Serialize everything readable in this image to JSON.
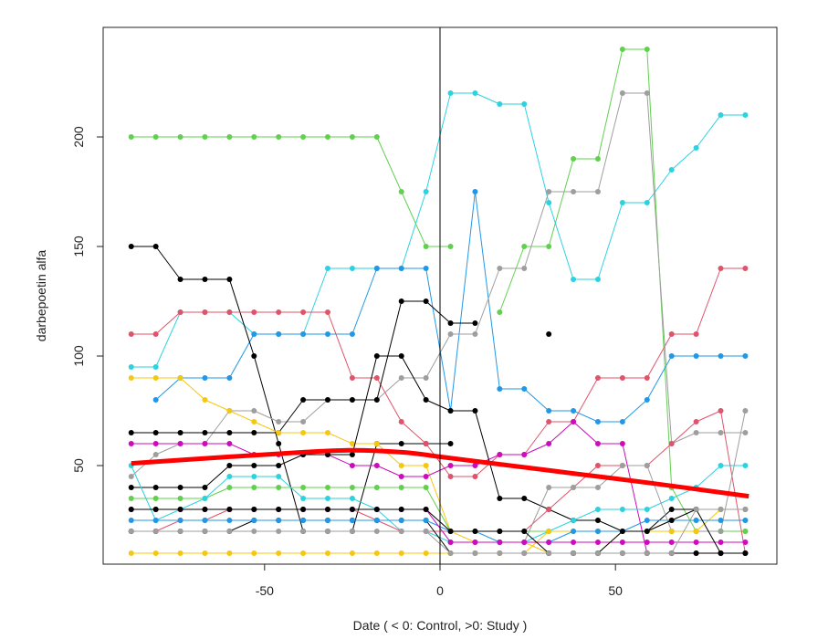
{
  "chart_data": {
    "type": "line",
    "xlabel": "Date ( < 0: Control, >0: Study )",
    "ylabel": "darbepoetin alfa",
    "xlim": [
      -96,
      96
    ],
    "ylim": [
      5,
      250
    ],
    "xticks": [
      -50,
      0,
      50
    ],
    "yticks": [
      50,
      100,
      150,
      200
    ],
    "vline_x": 0,
    "grid": false,
    "legend": "none",
    "series": [
      {
        "color": "#61D04F",
        "x": [
          -88,
          -81,
          -74,
          -67,
          -60,
          -53,
          -46,
          -39,
          -32,
          -25,
          -18,
          -11,
          -4,
          3,
          10,
          17,
          24,
          31,
          38,
          45,
          52,
          59,
          66,
          73,
          80,
          87
        ],
        "y": [
          200,
          200,
          200,
          200,
          200,
          200,
          200,
          200,
          200,
          200,
          200,
          175,
          150,
          150,
          null,
          120,
          150,
          150,
          190,
          190,
          240,
          240,
          40,
          20,
          20,
          20
        ]
      },
      {
        "color": "#2DD2DF",
        "x": [
          -88,
          -81,
          -74,
          -67,
          -60,
          -53,
          -46,
          -39,
          -32,
          -25,
          -18,
          -11,
          -4,
          3,
          10,
          17,
          24,
          31,
          38,
          45,
          52,
          59,
          66,
          73,
          80,
          87
        ],
        "y": [
          95,
          95,
          120,
          120,
          120,
          110,
          110,
          110,
          140,
          140,
          140,
          140,
          175,
          220,
          220,
          215,
          215,
          170,
          135,
          135,
          170,
          170,
          185,
          195,
          210,
          210
        ]
      },
      {
        "color": "#2297E6",
        "x": [
          -81,
          -74,
          -67,
          -60,
          -53,
          -46,
          -39,
          -32,
          -25,
          -18,
          -11,
          -4,
          3,
          10,
          17,
          24,
          31,
          38,
          45,
          52,
          59,
          66,
          73,
          80,
          87
        ],
        "y": [
          80,
          90,
          90,
          90,
          110,
          110,
          110,
          110,
          110,
          140,
          140,
          140,
          75,
          175,
          85,
          85,
          75,
          75,
          70,
          70,
          80,
          100,
          100,
          100,
          100
        ]
      },
      {
        "color": "#000000",
        "x": [
          -88,
          -81,
          -74,
          -67,
          -60,
          -53,
          -46,
          -39,
          -32,
          -25,
          -18,
          -11,
          -4,
          3,
          10,
          17,
          24,
          31
        ],
        "y": [
          150,
          150,
          135,
          135,
          135,
          100,
          60,
          20,
          20,
          20,
          60,
          60,
          60,
          60,
          null,
          null,
          null,
          null
        ]
      },
      {
        "color": "#DF536B",
        "x": [
          -88,
          -81,
          -74,
          -67,
          -60,
          -53,
          -46,
          -39,
          -32,
          -25,
          -18,
          -11,
          -4,
          3,
          10,
          17,
          24,
          31,
          38,
          45,
          52,
          59,
          66,
          73,
          80,
          87
        ],
        "y": [
          110,
          110,
          120,
          120,
          120,
          120,
          120,
          120,
          120,
          90,
          90,
          70,
          60,
          45,
          45,
          55,
          55,
          70,
          70,
          90,
          90,
          90,
          110,
          110,
          140,
          140
        ]
      },
      {
        "color": "#9E9E9E",
        "x": [
          -88,
          -81,
          -74,
          -67,
          -60,
          -53,
          -46,
          -39,
          -32,
          -25,
          -18,
          -11,
          -4,
          3,
          10,
          17,
          24,
          31,
          38,
          45,
          52,
          59,
          66,
          73,
          80,
          87
        ],
        "y": [
          45,
          55,
          60,
          60,
          75,
          75,
          70,
          70,
          80,
          80,
          80,
          90,
          90,
          110,
          110,
          140,
          140,
          175,
          175,
          175,
          220,
          220,
          60,
          65,
          65,
          65
        ]
      },
      {
        "color": "#000000",
        "x": [
          -88,
          -81,
          -74,
          -67,
          -60,
          -53,
          -46,
          -39,
          -32,
          -25,
          -18,
          -11,
          -4,
          3,
          10,
          17,
          24,
          31
        ],
        "y": [
          65,
          65,
          65,
          65,
          65,
          65,
          65,
          80,
          80,
          80,
          80,
          125,
          125,
          115,
          115,
          null,
          null,
          110
        ]
      },
      {
        "color": "#F5C710",
        "x": [
          -88,
          -81,
          -74,
          -67,
          -60,
          -53,
          -46,
          -39,
          -32,
          -25,
          -18,
          -11,
          -4,
          3,
          10,
          17,
          24,
          31,
          38,
          45,
          52,
          59,
          66,
          73,
          80,
          87
        ],
        "y": [
          90,
          90,
          90,
          80,
          75,
          70,
          65,
          65,
          65,
          60,
          60,
          50,
          50,
          20,
          15,
          15,
          15,
          10,
          10,
          10,
          20,
          20,
          25,
          25,
          25,
          25
        ]
      },
      {
        "color": "#CD0BBC",
        "x": [
          -88,
          -81,
          -74,
          -67,
          -60,
          -53,
          -46,
          -39,
          -32,
          -25,
          -18,
          -11,
          -4,
          3,
          10,
          17,
          24,
          31,
          38,
          45,
          52,
          59,
          66,
          73,
          80,
          87
        ],
        "y": [
          60,
          60,
          60,
          60,
          60,
          55,
          55,
          55,
          55,
          50,
          50,
          45,
          45,
          50,
          50,
          55,
          55,
          60,
          70,
          60,
          60,
          10,
          10,
          10,
          10,
          10
        ]
      },
      {
        "color": "#000000",
        "x": [
          -88,
          -81,
          -74,
          -67,
          -60,
          -53,
          -46,
          -39,
          -32,
          -25,
          -18,
          -11,
          -4,
          3,
          10,
          17,
          24,
          31,
          38,
          45,
          52,
          59,
          66,
          73,
          80,
          87
        ],
        "y": [
          40,
          40,
          40,
          40,
          50,
          50,
          50,
          55,
          55,
          55,
          100,
          100,
          80,
          75,
          75,
          35,
          35,
          30,
          25,
          25,
          20,
          20,
          30,
          30,
          30,
          30
        ]
      },
      {
        "color": "#61D04F",
        "x": [
          -88,
          -81,
          -74,
          -67,
          -60,
          -53,
          -46,
          -39,
          -32,
          -25,
          -18,
          -11,
          -4,
          3,
          10,
          17,
          24,
          31,
          38,
          45,
          52,
          59,
          66,
          73,
          80,
          87
        ],
        "y": [
          35,
          35,
          35,
          35,
          40,
          40,
          40,
          40,
          40,
          40,
          40,
          40,
          40,
          20,
          20,
          20,
          20,
          20,
          20,
          20,
          20,
          20,
          20,
          20,
          20,
          20
        ]
      },
      {
        "color": "#2DD2DF",
        "x": [
          -88,
          -81,
          -74,
          -67,
          -60,
          -53,
          -46,
          -39,
          -32,
          -25,
          -18,
          -11,
          -4,
          3,
          10,
          17,
          24,
          31,
          38,
          45,
          52,
          59,
          66,
          73,
          80,
          87
        ],
        "y": [
          50,
          25,
          30,
          35,
          45,
          45,
          45,
          35,
          35,
          35,
          30,
          20,
          20,
          15,
          15,
          15,
          15,
          20,
          25,
          30,
          30,
          30,
          35,
          40,
          50,
          50
        ]
      },
      {
        "color": "#DF536B",
        "x": [
          -88,
          -81,
          -74,
          -67,
          -60,
          -53,
          -46,
          -39,
          -32,
          -25,
          -18,
          -11,
          -4,
          3,
          10,
          17,
          24,
          31,
          38,
          45,
          52,
          59,
          66,
          73,
          80,
          87
        ],
        "y": [
          20,
          20,
          25,
          25,
          30,
          30,
          30,
          30,
          30,
          30,
          25,
          20,
          20,
          20,
          20,
          20,
          20,
          30,
          40,
          50,
          50,
          50,
          60,
          70,
          75,
          10
        ]
      },
      {
        "color": "#9E9E9E",
        "x": [
          -88,
          -81,
          -74,
          -67,
          -60,
          -53,
          -46,
          -39,
          -32,
          -25,
          -18,
          -11,
          -4,
          3,
          10,
          17,
          24,
          31,
          38,
          45,
          52,
          59,
          66,
          73,
          80,
          87
        ],
        "y": [
          30,
          30,
          30,
          30,
          30,
          30,
          30,
          30,
          30,
          30,
          30,
          30,
          30,
          15,
          15,
          15,
          15,
          40,
          40,
          40,
          50,
          50,
          20,
          20,
          20,
          75
        ]
      },
      {
        "color": "#000000",
        "x": [
          -88,
          -81,
          -74,
          -67,
          -60,
          -53,
          -46,
          -39,
          -32,
          -25,
          -18,
          -11,
          -4,
          3,
          10,
          17,
          24,
          31,
          38,
          45,
          52,
          59,
          66,
          73,
          80,
          87
        ],
        "y": [
          20,
          20,
          20,
          20,
          20,
          25,
          25,
          25,
          25,
          25,
          25,
          25,
          25,
          10,
          10,
          10,
          10,
          10,
          10,
          10,
          10,
          10,
          10,
          10,
          10,
          10
        ]
      },
      {
        "color": "#F5C710",
        "x": [
          -88,
          -81,
          -74,
          -67,
          -60,
          -53,
          -46,
          -39,
          -32,
          -25,
          -18,
          -11,
          -4,
          3,
          10,
          17,
          24,
          31,
          38,
          45,
          52,
          59,
          66,
          73,
          80,
          87
        ],
        "y": [
          10,
          10,
          10,
          10,
          10,
          10,
          10,
          10,
          10,
          10,
          10,
          10,
          10,
          10,
          10,
          10,
          10,
          20,
          20,
          20,
          20,
          20,
          20,
          20,
          30,
          30
        ]
      },
      {
        "color": "#2297E6",
        "x": [
          -88,
          -81,
          -74,
          -67,
          -60,
          -53,
          -46,
          -39,
          -32,
          -25,
          -18,
          -11,
          -4,
          3,
          10,
          17,
          24,
          31,
          38,
          45,
          52,
          59,
          66,
          73,
          80,
          87
        ],
        "y": [
          25,
          25,
          25,
          25,
          25,
          25,
          25,
          25,
          25,
          25,
          25,
          25,
          25,
          20,
          20,
          15,
          15,
          15,
          20,
          20,
          20,
          25,
          25,
          25,
          25,
          25
        ]
      },
      {
        "color": "#CD0BBC",
        "x": [
          -88,
          -81,
          -74,
          -67,
          -60,
          -53,
          -46,
          -39,
          -32,
          -25,
          -18,
          -11,
          -4,
          3,
          10,
          17,
          24,
          31,
          38,
          45,
          52,
          59,
          66,
          73,
          80,
          87
        ],
        "y": [
          30,
          30,
          30,
          30,
          30,
          30,
          30,
          30,
          30,
          30,
          30,
          30,
          30,
          15,
          15,
          15,
          15,
          15,
          15,
          15,
          15,
          15,
          15,
          15,
          15,
          15
        ]
      },
      {
        "color": "#000000",
        "x": [
          -88,
          -81,
          -74,
          -67,
          -60,
          -53,
          -46,
          -39,
          -32,
          -25,
          -18,
          -11,
          -4,
          3,
          10,
          17,
          24,
          31,
          38,
          45,
          52,
          59,
          66,
          73,
          80,
          87
        ],
        "y": [
          30,
          30,
          30,
          30,
          30,
          30,
          30,
          30,
          30,
          30,
          30,
          30,
          30,
          20,
          20,
          20,
          20,
          10,
          10,
          10,
          20,
          20,
          25,
          30,
          10,
          10
        ]
      },
      {
        "color": "#9E9E9E",
        "x": [
          -88,
          -81,
          -74,
          -67,
          -60,
          -53,
          -46,
          -39,
          -32,
          -25,
          -18,
          -11,
          -4,
          3,
          10,
          17,
          24,
          31,
          38,
          45,
          52,
          59,
          66,
          73,
          80,
          87
        ],
        "y": [
          20,
          20,
          20,
          20,
          20,
          20,
          20,
          20,
          20,
          20,
          20,
          20,
          20,
          10,
          10,
          10,
          10,
          10,
          10,
          10,
          10,
          10,
          10,
          30,
          30,
          30
        ]
      },
      {
        "color": "#FF0000",
        "width": 5,
        "dots": false,
        "x": [
          -88,
          -60,
          -40,
          -25,
          -10,
          0,
          15,
          40,
          60,
          88
        ],
        "y": [
          51,
          54,
          56,
          57,
          56,
          54,
          51,
          46,
          42,
          36
        ]
      }
    ]
  }
}
